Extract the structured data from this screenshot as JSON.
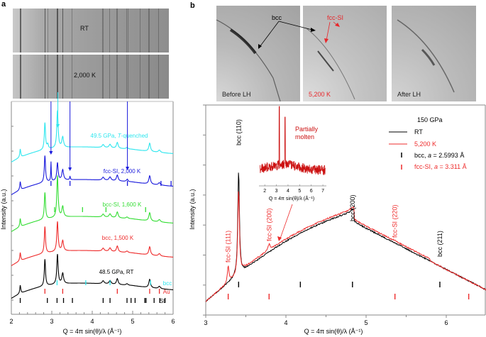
{
  "panels": {
    "a": {
      "letter": "a",
      "detector_images": [
        {
          "label": "RT"
        },
        {
          "label": "2,000 K"
        }
      ]
    },
    "b": {
      "letter": "b",
      "detector_images": [
        {
          "label": "Before LH",
          "label_color": "#222222"
        },
        {
          "label": "5,200 K",
          "label_color": "#e8262a"
        },
        {
          "label": "After LH",
          "label_color": "#222222"
        }
      ],
      "image_annotations": [
        {
          "text": "bcc",
          "color": "#000000"
        },
        {
          "text": "fcc-SI",
          "color": "#e8262a"
        }
      ]
    }
  },
  "colors": {
    "cyan": "#2ee6ee",
    "blue": "#1a1adc",
    "green": "#33dd33",
    "red": "#ee2b2b",
    "black": "#000000",
    "inset_red": "#cc1111",
    "axis": "#888888"
  },
  "chart_data": [
    {
      "id": "panel-a",
      "type": "line",
      "title": "",
      "xlabel": "Q = 4π sin(θ)/λ (Å⁻¹)",
      "ylabel": "Intensity (a.u.)",
      "xlim": [
        2,
        6
      ],
      "xticks": [
        "2",
        "3",
        "4",
        "5",
        "6"
      ],
      "grid": false,
      "series": [
        {
          "name": "49.5 GPa, T-quenched",
          "color": "#2ee6ee",
          "offset": 4
        },
        {
          "name": "fcc-SI, 2,000 K",
          "color": "#1a1adc",
          "offset": 3
        },
        {
          "name": "bcc-SI, 1,600 K",
          "color": "#33dd33",
          "offset": 2
        },
        {
          "name": "bcc, 1,500 K",
          "color": "#ee2b2b",
          "offset": 1
        },
        {
          "name": "48.5 GPa, RT",
          "color": "#000000",
          "offset": 0
        }
      ],
      "reflection_ticks": [
        {
          "name": "fcc-SI",
          "color": "#1a1adc",
          "positions": [
            2.98,
            3.45,
            4.87,
            5.7,
            5.95
          ]
        },
        {
          "name": "bcc-SI",
          "color": "#33dd33",
          "positions": [
            3.07,
            3.76,
            4.34,
            5.32
          ]
        },
        {
          "name": "bcc",
          "color": "#2ee6ee",
          "label": "bcc",
          "positions": [
            3.13,
            3.84,
            4.44,
            5.44
          ]
        },
        {
          "name": "Au",
          "color": "#ee2b2b",
          "label": "Au",
          "positions": [
            2.83,
            3.27,
            4.62,
            5.42,
            5.66
          ]
        },
        {
          "name": "St",
          "color": "#000000",
          "label": "St",
          "positions": [
            2.22,
            2.89,
            3.13,
            3.29,
            3.51,
            4.27,
            4.44,
            4.86,
            4.96,
            5.06,
            5.3,
            5.33,
            5.53,
            5.67,
            5.8
          ]
        }
      ],
      "arrows": [
        {
          "from": "detector",
          "to_series": "49.5 GPa, T-quenched",
          "x": 3.15,
          "color": "#2ee6ee"
        },
        {
          "from": "detector",
          "to_series": "fcc-SI, 2,000 K",
          "x": 2.98,
          "color": "#1a1adc"
        },
        {
          "from": "detector",
          "to_series": "fcc-SI, 2,000 K",
          "x": 3.45,
          "color": "#1a1adc"
        },
        {
          "from": "detector",
          "to_series": "fcc-SI, 2,000 K",
          "x": 4.87,
          "color": "#1a1adc"
        }
      ],
      "peaks_common": [
        2.22,
        2.83,
        3.14,
        3.27,
        4.27,
        4.44,
        4.62,
        4.86,
        5.42,
        5.66
      ]
    },
    {
      "id": "panel-b",
      "type": "line",
      "title": "150 GPa",
      "xlabel": "Q = 4π sin(θ)/λ (Å⁻¹)",
      "ylabel": "Intensity (a.u.)",
      "xlim": [
        3,
        6.5
      ],
      "xticks": [
        "3",
        "4",
        "5",
        "6"
      ],
      "grid": false,
      "legend": {
        "placement": "top-right",
        "header": "150 GPa",
        "entries": [
          {
            "label": "RT",
            "kind": "line",
            "color": "#000000"
          },
          {
            "label": "5,200 K",
            "kind": "line",
            "color": "#ee2b2b"
          },
          {
            "label": "bcc, a = 2.5993 Å",
            "kind": "tick",
            "color": "#000000"
          },
          {
            "label": "fcc-SI, a = 3.311 Å",
            "kind": "tick",
            "color": "#ee2b2b"
          }
        ]
      },
      "series": [
        {
          "name": "RT",
          "color": "#000000"
        },
        {
          "name": "5,200 K",
          "color": "#ee2b2b"
        }
      ],
      "peak_labels": [
        {
          "text": "bcc (110)",
          "x": 3.41,
          "color": "#000000"
        },
        {
          "text": "fcc-SI (111)",
          "x": 3.28,
          "color": "#ee2b2b"
        },
        {
          "text": "fcc-SI (200)",
          "x": 3.79,
          "color": "#ee2b2b"
        },
        {
          "text": "bcc (200)",
          "x": 4.83,
          "color": "#000000"
        },
        {
          "text": "fcc-SI (220)",
          "x": 5.36,
          "color": "#ee2b2b"
        },
        {
          "text": "bcc (211)",
          "x": 5.92,
          "color": "#000000"
        }
      ],
      "reflection_ticks": [
        {
          "name": "bcc",
          "color": "#000000",
          "positions": [
            3.41,
            4.18,
            4.83,
            5.92
          ]
        },
        {
          "name": "fcc-SI",
          "color": "#ee2b2b",
          "positions": [
            3.28,
            3.79,
            5.36,
            6.28
          ]
        }
      ],
      "annotation": {
        "text": [
          "Partially",
          "molten"
        ],
        "color": "#cc1111"
      },
      "inset": {
        "type": "line",
        "xlabel": "Q = 4π sin(θ)/λ (Å⁻¹)",
        "xlim": [
          1.5,
          7.3
        ],
        "xticks": [
          "2",
          "3",
          "4",
          "5",
          "6",
          "7"
        ],
        "series_color": "#cc1111",
        "peaks": [
          3.25,
          3.75
        ]
      }
    }
  ]
}
